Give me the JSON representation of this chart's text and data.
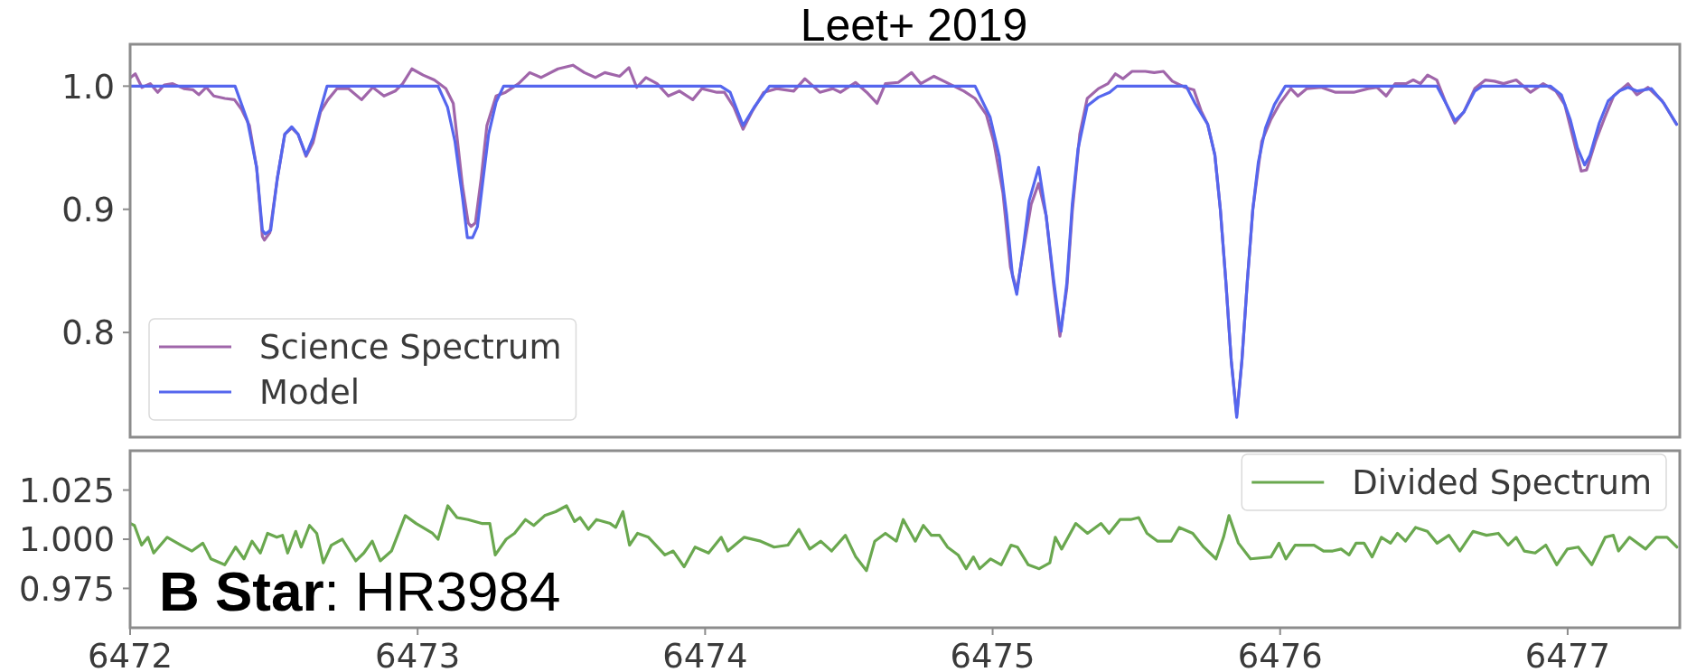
{
  "chart_data": [
    {
      "type": "line",
      "title": "Leet+ 2019",
      "xlim": [
        6472,
        6477.39
      ],
      "ylim": [
        0.715,
        1.034
      ],
      "yticks": [
        {
          "value": 1,
          "label": "1.0"
        },
        0.9,
        0.8
      ],
      "tick_labels": "y",
      "legend": "bottom left",
      "series": [
        {
          "name": "Science Spectrum",
          "color": "#a066aa",
          "x": [
            6472.002,
            6472.018,
            6472.041,
            6472.07,
            6472.096,
            6472.119,
            6472.148,
            6472.187,
            6472.219,
            6472.239,
            6472.265,
            6472.291,
            6472.33,
            6472.363,
            6472.388,
            6472.415,
            6472.44,
            6472.46,
            6472.467,
            6472.486,
            6472.512,
            6472.538,
            6472.562,
            6472.584,
            6472.612,
            6472.636,
            6472.662,
            6472.688,
            6472.72,
            6472.759,
            6472.805,
            6472.844,
            6472.883,
            6472.922,
            6472.948,
            6472.98,
            6473.019,
            6473.058,
            6473.098,
            6473.124,
            6473.156,
            6473.176,
            6473.186,
            6473.201,
            6473.221,
            6473.241,
            6473.273,
            6473.306,
            6473.351,
            6473.39,
            6473.429,
            6473.488,
            6473.54,
            6473.58,
            6473.618,
            6473.651,
            6473.703,
            6473.735,
            6473.762,
            6473.794,
            6473.833,
            6473.872,
            6473.911,
            6473.957,
            6473.989,
            6474.041,
            6474.067,
            6474.1,
            6474.132,
            6474.165,
            6474.204,
            6474.249,
            6474.308,
            6474.347,
            6474.399,
            6474.444,
            6474.471,
            6474.523,
            6474.562,
            6474.598,
            6474.627,
            6474.672,
            6474.718,
            6474.75,
            6474.796,
            6474.848,
            6474.9,
            6474.939,
            6474.978,
            6475.004,
            6475.036,
            6475.062,
            6475.084,
            6475.108,
            6475.134,
            6475.16,
            6475.186,
            6475.212,
            6475.234,
            6475.258,
            6475.277,
            6475.303,
            6475.329,
            6475.368,
            6475.401,
            6475.427,
            6475.453,
            6475.485,
            6475.531,
            6475.562,
            6475.594,
            6475.625,
            6475.669,
            6475.7,
            6475.725,
            6475.748,
            6475.773,
            6475.792,
            6475.811,
            6475.83,
            6475.849,
            6475.867,
            6475.886,
            6475.905,
            6475.936,
            6475.968,
            6475.999,
            6476.037,
            6476.062,
            6476.093,
            6476.143,
            6476.193,
            6476.256,
            6476.306,
            6476.337,
            6476.369,
            6476.4,
            6476.438,
            6476.463,
            6476.488,
            6476.513,
            6476.545,
            6476.577,
            6476.608,
            6476.639,
            6476.677,
            6476.714,
            6476.745,
            6476.777,
            6476.821,
            6476.871,
            6476.915,
            6476.959,
            6476.99,
            6477.022,
            6477.047,
            6477.066,
            6477.097,
            6477.128,
            6477.16,
            6477.21,
            6477.241,
            6477.279,
            6477.329,
            6477.379
          ],
          "values": [
            1.007,
            1.01,
            0.999,
            1.002,
            0.995,
            1.001,
            1.002,
            0.998,
            0.997,
            0.993,
            0.999,
            0.992,
            0.99,
            0.989,
            0.981,
            0.968,
            0.934,
            0.878,
            0.875,
            0.881,
            0.925,
            0.961,
            0.966,
            0.961,
            0.943,
            0.954,
            0.979,
            0.989,
            0.998,
            0.998,
            0.989,
            0.999,
            0.992,
            0.996,
            1.002,
            1.014,
            1.009,
            1.005,
            0.998,
            0.986,
            0.919,
            0.889,
            0.886,
            0.889,
            0.925,
            0.968,
            0.992,
            0.995,
            1.002,
            1.011,
            1.007,
            1.014,
            1.017,
            1.011,
            1.007,
            1.011,
            1.008,
            1.015,
            0.999,
            1.007,
            1.002,
            0.992,
            0.996,
            0.989,
            0.998,
            0.995,
            0.995,
            0.983,
            0.965,
            0.98,
            0.995,
            0.998,
            0.996,
            1.006,
            0.995,
            0.998,
            0.995,
            1.003,
            0.995,
            0.986,
            1.002,
            1.003,
            1.011,
            1.002,
            1.008,
            1.002,
            0.996,
            0.99,
            0.977,
            0.955,
            0.913,
            0.853,
            0.834,
            0.868,
            0.904,
            0.921,
            0.895,
            0.839,
            0.797,
            0.836,
            0.898,
            0.961,
            0.99,
            0.998,
            1.002,
            1.01,
            1.006,
            1.012,
            1.012,
            1.011,
            1.012,
            1.004,
            0.999,
            0.997,
            0.98,
            0.969,
            0.944,
            0.9,
            0.842,
            0.777,
            0.733,
            0.777,
            0.842,
            0.9,
            0.955,
            0.973,
            0.986,
            0.998,
            0.992,
            0.998,
            0.999,
            0.995,
            0.995,
            0.998,
            0.999,
            0.992,
            1.002,
            1.002,
            1.005,
            1.002,
            1.009,
            1.005,
            0.986,
            0.97,
            0.979,
            0.998,
            1.005,
            1.004,
            1.002,
            1.005,
            0.995,
            1.002,
            0.996,
            0.985,
            0.955,
            0.931,
            0.932,
            0.955,
            0.974,
            0.992,
            1.002,
            0.993,
            0.999,
            0.988,
            0.969
          ]
        },
        {
          "name": "Model",
          "color": "#5566ee",
          "x": [
            6472.0,
            6472.365,
            6472.408,
            6472.44,
            6472.46,
            6472.47,
            6472.489,
            6472.512,
            6472.538,
            6472.562,
            6472.584,
            6472.612,
            6472.636,
            6472.662,
            6472.685,
            6473.071,
            6473.104,
            6473.13,
            6473.156,
            6473.173,
            6473.191,
            6473.208,
            6473.228,
            6473.247,
            6473.273,
            6473.299,
            6474.054,
            6474.087,
            6474.132,
            6474.171,
            6474.224,
            6474.939,
            6474.991,
            6475.023,
            6475.049,
            6475.069,
            6475.084,
            6475.108,
            6475.127,
            6475.16,
            6475.186,
            6475.212,
            6475.232,
            6475.238,
            6475.258,
            6475.277,
            6475.297,
            6475.329,
            6475.368,
            6475.407,
            6475.433,
            6475.673,
            6475.704,
            6475.748,
            6475.773,
            6475.792,
            6475.811,
            6475.83,
            6475.849,
            6475.867,
            6475.886,
            6475.905,
            6475.924,
            6475.949,
            6475.98,
            6476.018,
            6476.545,
            6476.577,
            6476.608,
            6476.639,
            6476.677,
            6476.702,
            6476.94,
            6476.978,
            6477.009,
            6477.034,
            6477.059,
            6477.078,
            6477.11,
            6477.141,
            6477.179,
            6477.21,
            6477.241,
            6477.291,
            6477.335,
            6477.379
          ],
          "values": [
            1.0,
            1.0,
            0.972,
            0.934,
            0.883,
            0.88,
            0.883,
            0.925,
            0.961,
            0.967,
            0.961,
            0.944,
            0.958,
            0.981,
            1.0,
            1.0,
            0.983,
            0.955,
            0.91,
            0.877,
            0.877,
            0.886,
            0.925,
            0.961,
            0.987,
            1.0,
            1.0,
            0.995,
            0.968,
            0.983,
            1.0,
            1.0,
            0.975,
            0.943,
            0.895,
            0.846,
            0.831,
            0.871,
            0.907,
            0.934,
            0.895,
            0.843,
            0.807,
            0.801,
            0.84,
            0.904,
            0.949,
            0.984,
            0.991,
            0.995,
            1.0,
            1.0,
            0.986,
            0.969,
            0.944,
            0.9,
            0.842,
            0.777,
            0.731,
            0.777,
            0.842,
            0.9,
            0.938,
            0.966,
            0.985,
            1.0,
            1.0,
            0.986,
            0.972,
            0.979,
            0.996,
            1.0,
            1.0,
            0.993,
            0.973,
            0.95,
            0.936,
            0.944,
            0.97,
            0.988,
            0.996,
            0.999,
            0.996,
            0.998,
            0.986,
            0.969
          ]
        }
      ]
    },
    {
      "type": "line",
      "xlim": [
        6472,
        6477.39
      ],
      "xticks": [
        6472,
        6473,
        6474,
        6475,
        6476,
        6477
      ],
      "ylim": [
        0.955,
        1.045
      ],
      "yticks": [
        1.025,
        {
          "value": 1,
          "label": "1.000"
        },
        0.975
      ],
      "legend": "top right",
      "annotations": [
        "B Star: HR3984"
      ],
      "series": [
        {
          "name": "Divided Spectrum",
          "color": "#6aa84f",
          "x": [
            6472.0,
            6472.015,
            6472.04,
            6472.062,
            6472.082,
            6472.129,
            6472.177,
            6472.215,
            6472.253,
            6472.281,
            6472.329,
            6472.367,
            6472.396,
            6472.424,
            6472.453,
            6472.478,
            6472.51,
            6472.53,
            6472.548,
            6472.576,
            6472.595,
            6472.624,
            6472.649,
            6472.672,
            6472.7,
            6472.738,
            6472.785,
            6472.813,
            6472.842,
            6472.87,
            6472.909,
            6472.957,
            6472.995,
            6473.052,
            6473.071,
            6473.105,
            6473.137,
            6473.175,
            6473.223,
            6473.251,
            6473.27,
            6473.308,
            6473.337,
            6473.375,
            6473.404,
            6473.442,
            6473.48,
            6473.518,
            6473.546,
            6473.565,
            6473.594,
            6473.622,
            6473.67,
            6473.689,
            6473.714,
            6473.737,
            6473.765,
            6473.803,
            6473.86,
            6473.889,
            6473.927,
            6473.965,
            6474.012,
            6474.056,
            6474.079,
            6474.136,
            6474.193,
            6474.24,
            6474.288,
            6474.326,
            6474.364,
            6474.402,
            6474.44,
            6474.488,
            6474.524,
            6474.561,
            6474.59,
            6474.627,
            6474.665,
            6474.689,
            6474.731,
            6474.759,
            6474.787,
            6474.815,
            6474.843,
            6474.88,
            6474.908,
            6474.933,
            6474.955,
            6474.993,
            6475.03,
            6475.064,
            6475.086,
            6475.124,
            6475.162,
            6475.199,
            6475.218,
            6475.24,
            6475.289,
            6475.33,
            6475.377,
            6475.405,
            6475.443,
            6475.48,
            6475.508,
            6475.537,
            6475.574,
            6475.621,
            6475.649,
            6475.696,
            6475.734,
            6475.777,
            6475.803,
            6475.822,
            6475.855,
            6475.897,
            6475.968,
            6475.996,
            6476.02,
            6476.052,
            6476.118,
            6476.151,
            6476.183,
            6476.212,
            6476.24,
            6476.264,
            6476.292,
            6476.32,
            6476.352,
            6476.384,
            6476.408,
            6476.436,
            6476.471,
            6476.512,
            6476.546,
            6476.587,
            6476.625,
            6476.671,
            6476.718,
            6476.759,
            6476.793,
            6476.821,
            6476.849,
            6476.887,
            6476.924,
            6476.962,
            6476.999,
            6477.037,
            6477.084,
            6477.131,
            6477.159,
            6477.177,
            6477.215,
            6477.271,
            6477.308,
            6477.346,
            6477.38
          ],
          "values": [
            1.008,
            1.007,
            0.997,
            1.001,
            0.993,
            1.001,
            0.997,
            0.994,
            0.998,
            0.99,
            0.987,
            0.996,
            0.99,
            0.999,
            0.993,
            1.003,
            1.001,
            1.002,
            0.993,
            1.004,
            0.996,
            1.007,
            1.003,
            0.988,
            0.997,
            1.0,
            0.989,
            0.993,
            0.999,
            0.989,
            0.994,
            1.012,
            1.008,
            1.003,
            1.0,
            1.017,
            1.011,
            1.01,
            1.008,
            1.008,
            0.992,
            1.0,
            1.003,
            1.01,
            1.007,
            1.012,
            1.014,
            1.017,
            1.009,
            1.011,
            1.005,
            1.01,
            1.008,
            1.006,
            1.014,
            0.997,
            1.003,
            1.001,
            0.992,
            0.994,
            0.986,
            0.996,
            0.993,
            1.001,
            0.994,
            1.001,
            0.999,
            0.996,
            0.997,
            1.005,
            0.995,
            0.999,
            0.994,
            1.002,
            0.991,
            0.984,
            0.999,
            1.003,
            0.999,
            1.01,
            0.999,
            1.007,
            1.002,
            1.002,
            0.996,
            0.992,
            0.985,
            0.991,
            0.985,
            0.99,
            0.987,
            0.997,
            0.996,
            0.987,
            0.985,
            0.988,
            1.001,
            0.995,
            1.008,
            1.003,
            1.008,
            1.003,
            1.01,
            1.01,
            1.011,
            1.003,
            0.999,
            0.999,
            1.006,
            1.003,
            0.996,
            0.99,
            1.001,
            1.012,
            0.998,
            0.99,
            0.991,
            0.998,
            0.99,
            0.997,
            0.997,
            0.994,
            0.994,
            0.995,
            0.992,
            0.998,
            0.998,
            0.991,
            1.001,
            0.998,
            1.003,
            0.999,
            1.006,
            1.004,
            0.998,
            1.002,
            0.994,
            1.004,
            1.002,
            1.003,
            0.997,
            1.001,
            0.994,
            0.993,
            0.997,
            0.987,
            0.995,
            0.996,
            0.987,
            1.001,
            1.002,
            0.994,
            1.001,
            0.995,
            1.001,
            1.001,
            0.996
          ]
        }
      ]
    }
  ]
}
